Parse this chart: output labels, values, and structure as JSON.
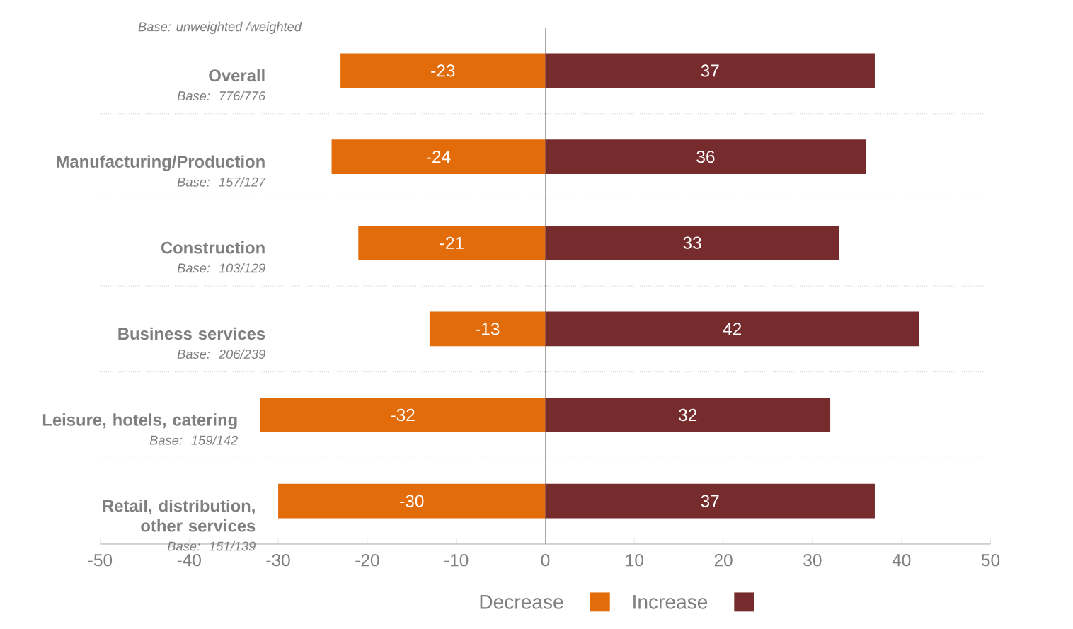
{
  "chart_data": {
    "type": "bar",
    "orientation": "horizontal",
    "categories": [
      "Overall",
      "Manufacturing/Production",
      "Construction",
      "Business services",
      "Leisure, hotels, catering",
      "Retail, distribution, other services"
    ],
    "annotations": [
      "Base: unweighted /weighted",
      "Base: 776/776",
      "Base: 157/127",
      "Base: 103/129",
      "Base: 206/239",
      "Base: 159/142",
      "Base: 151/139"
    ],
    "series": [
      {
        "name": "Decrease",
        "color": "#e36c0a",
        "values": [
          -23,
          -24,
          -21,
          -13,
          -32,
          -30
        ]
      },
      {
        "name": "Increase",
        "color": "#762b2c",
        "values": [
          37,
          36,
          33,
          42,
          32,
          37
        ]
      }
    ],
    "xlim": [
      -50,
      50
    ],
    "xticks": [
      -50,
      -40,
      -30,
      -20,
      -10,
      0,
      10,
      20,
      30,
      40,
      50
    ],
    "stacked": true,
    "data_labels": true,
    "grid": "y",
    "legend": "bottom"
  }
}
